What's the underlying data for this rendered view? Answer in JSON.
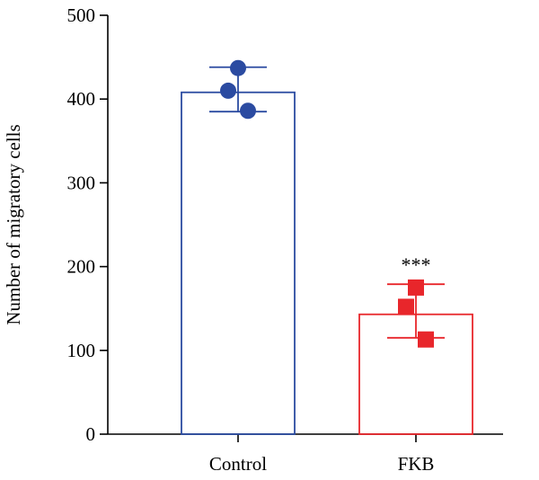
{
  "chart_data": {
    "type": "bar",
    "categories": [
      "Control",
      "FKB"
    ],
    "values": [
      408,
      143
    ],
    "error": [
      {
        "low": 385,
        "high": 438
      },
      {
        "low": 115,
        "high": 179
      }
    ],
    "points": [
      [
        437,
        410,
        386
      ],
      [
        175,
        152,
        113
      ]
    ],
    "marker_shapes": [
      "circle",
      "square"
    ],
    "colors": [
      "#2b4ba1",
      "#e8262b"
    ],
    "annotations": [
      "",
      "***"
    ],
    "title": "",
    "xlabel": "",
    "ylabel": "Number of migratory cells",
    "ylim": [
      0,
      500
    ],
    "yticks": [
      0,
      100,
      200,
      300,
      400,
      500
    ],
    "grid": false,
    "legend": "none"
  }
}
